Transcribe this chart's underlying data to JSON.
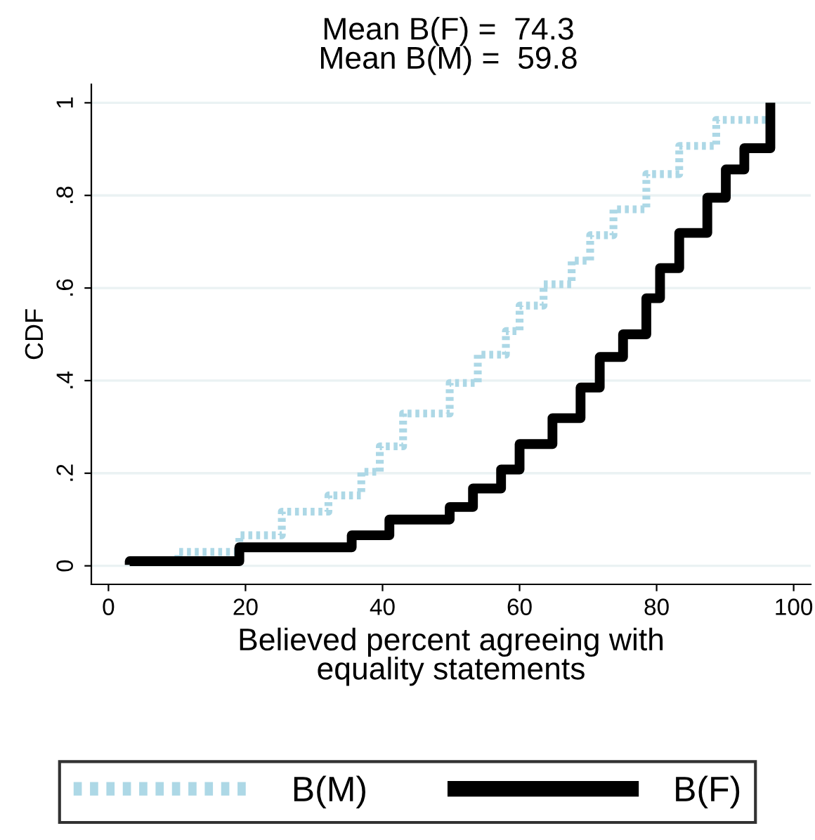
{
  "chart_data": {
    "type": "step",
    "title": "Mean B(F) =  74.3",
    "subtitle": "Mean B(M) =  59.8",
    "xlabel": "Believed percent agreeing with\nequality statements",
    "ylabel": "CDF",
    "xlim": [
      -2.5,
      102.5
    ],
    "xticks": [
      0,
      20,
      40,
      60,
      80,
      100
    ],
    "ylim": [
      -0.04,
      1.04
    ],
    "yticks": [
      {
        "value": 0,
        "label": "0"
      },
      {
        "value": 0.2,
        "label": ".2"
      },
      {
        "value": 0.4,
        "label": ".4"
      },
      {
        "value": 0.6,
        "label": ".6"
      },
      {
        "value": 0.8,
        "label": ".8"
      },
      {
        "value": 1,
        "label": "1"
      }
    ],
    "grid": "y",
    "legend": "bottom",
    "series": [
      {
        "name": "B(M)",
        "color": "#add8e6",
        "line_style": "dotted",
        "x": [
          3.1,
          10.2,
          19.1,
          25.3,
          32.1,
          36.9,
          39.6,
          43,
          49.8,
          53.9,
          58,
          60,
          63.5,
          67.6,
          70.3,
          73.7,
          78.5,
          83.3,
          88.7,
          96.6
        ],
        "values": [
          0.002,
          0.01,
          0.03,
          0.066,
          0.117,
          0.152,
          0.203,
          0.258,
          0.329,
          0.395,
          0.456,
          0.507,
          0.562,
          0.608,
          0.659,
          0.714,
          0.77,
          0.846,
          0.907,
          0.963
        ]
      },
      {
        "name": "B(F)",
        "color": "#000000",
        "line_style": "solid",
        "x": [
          3.1,
          19.1,
          35.5,
          41,
          49.8,
          53.2,
          57.3,
          60,
          64.8,
          68.9,
          71.7,
          75.1,
          78.5,
          80.5,
          83.3,
          87.4,
          90.1,
          92.8,
          96.6,
          96.6
        ],
        "values": [
          0.002,
          0.01,
          0.04,
          0.066,
          0.1,
          0.127,
          0.167,
          0.208,
          0.263,
          0.319,
          0.385,
          0.451,
          0.5,
          0.578,
          0.643,
          0.719,
          0.795,
          0.856,
          0.902,
          1
        ]
      }
    ]
  }
}
